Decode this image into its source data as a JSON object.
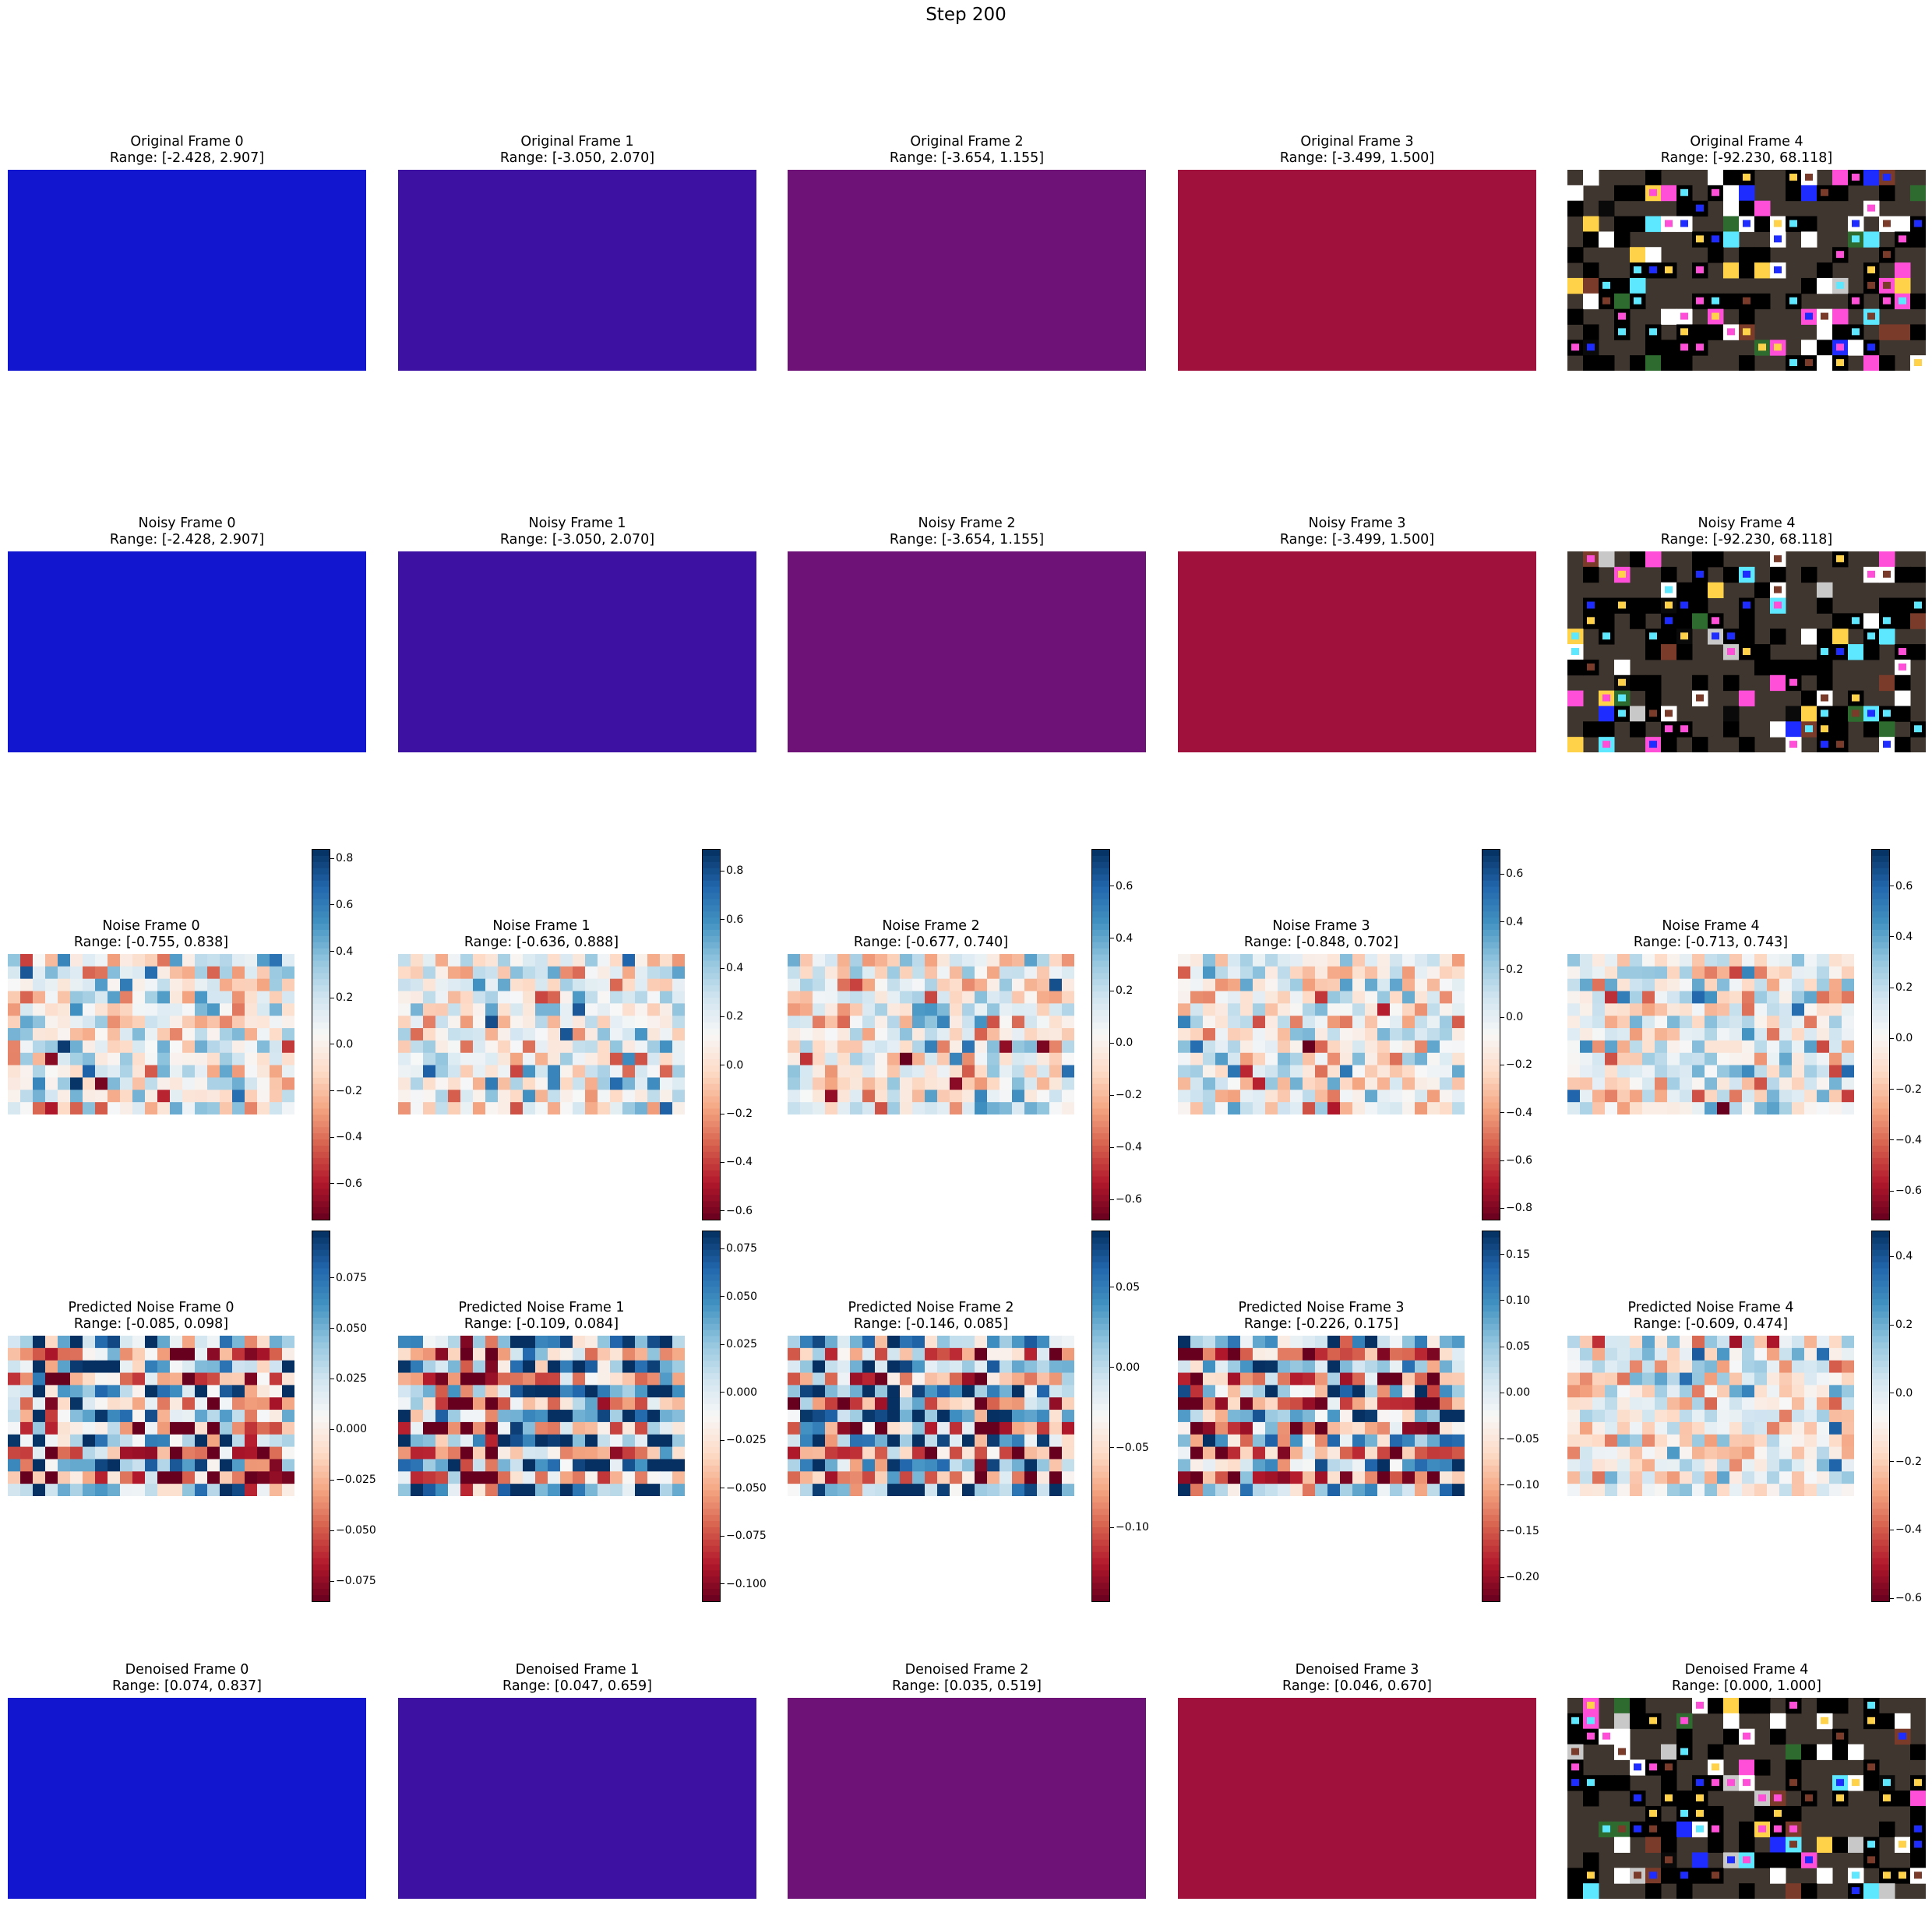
{
  "suptitle": "Step 200",
  "colors": {
    "frame0": "#1216cf",
    "frame1": "#3d12a3",
    "frame2": "#6e1277",
    "frame3": "#a0113c",
    "frame4_base": "#403630",
    "colormap": "RdBu"
  },
  "chart_data": {
    "type": "heatmap",
    "rows": [
      {
        "kind": "rgb-image",
        "panels": [
          {
            "title": "Original Frame 0",
            "range_label": "Range: [-2.428, 2.907]"
          },
          {
            "title": "Original Frame 1",
            "range_label": "Range: [-3.050, 2.070]"
          },
          {
            "title": "Original Frame 2",
            "range_label": "Range: [-3.654, 1.155]"
          },
          {
            "title": "Original Frame 3",
            "range_label": "Range: [-3.499, 1.500]"
          },
          {
            "title": "Original Frame 4",
            "range_label": "Range: [-92.230, 68.118]"
          }
        ]
      },
      {
        "kind": "rgb-image",
        "panels": [
          {
            "title": "Noisy Frame 0",
            "range_label": "Range: [-2.428, 2.907]"
          },
          {
            "title": "Noisy Frame 1",
            "range_label": "Range: [-3.050, 2.070]"
          },
          {
            "title": "Noisy Frame 2",
            "range_label": "Range: [-3.654, 1.155]"
          },
          {
            "title": "Noisy Frame 3",
            "range_label": "Range: [-3.499, 1.500]"
          },
          {
            "title": "Noisy Frame 4",
            "range_label": "Range: [-92.230, 68.118]"
          }
        ]
      },
      {
        "kind": "heatmap",
        "pattern": "random",
        "panels": [
          {
            "title": "Noise Frame 0",
            "range_label": "Range: [-0.755, 0.838]",
            "vmin": -0.755,
            "vmax": 0.838,
            "ticks": [
              -0.6,
              -0.4,
              -0.2,
              0.0,
              0.2,
              0.4,
              0.6,
              0.8
            ],
            "tick_labels": [
              "−0.6",
              "−0.4",
              "−0.2",
              "0.0",
              "0.2",
              "0.4",
              "0.6",
              "0.8"
            ]
          },
          {
            "title": "Noise Frame 1",
            "range_label": "Range: [-0.636, 0.888]",
            "vmin": -0.636,
            "vmax": 0.888,
            "ticks": [
              -0.6,
              -0.4,
              -0.2,
              0.0,
              0.2,
              0.4,
              0.6,
              0.8
            ],
            "tick_labels": [
              "−0.6",
              "−0.4",
              "−0.2",
              "0.0",
              "0.2",
              "0.4",
              "0.6",
              "0.8"
            ]
          },
          {
            "title": "Noise Frame 2",
            "range_label": "Range: [-0.677, 0.740]",
            "vmin": -0.677,
            "vmax": 0.74,
            "ticks": [
              -0.6,
              -0.4,
              -0.2,
              0.0,
              0.2,
              0.4,
              0.6
            ],
            "tick_labels": [
              "−0.6",
              "−0.4",
              "−0.2",
              "0.0",
              "0.2",
              "0.4",
              "0.6"
            ]
          },
          {
            "title": "Noise Frame 3",
            "range_label": "Range: [-0.848, 0.702]",
            "vmin": -0.848,
            "vmax": 0.702,
            "ticks": [
              -0.8,
              -0.6,
              -0.4,
              -0.2,
              0.0,
              0.2,
              0.4,
              0.6
            ],
            "tick_labels": [
              "−0.8",
              "−0.6",
              "−0.4",
              "−0.2",
              "0.0",
              "0.2",
              "0.4",
              "0.6"
            ]
          },
          {
            "title": "Noise Frame 4",
            "range_label": "Range: [-0.713, 0.743]",
            "vmin": -0.713,
            "vmax": 0.743,
            "ticks": [
              -0.6,
              -0.4,
              -0.2,
              0.0,
              0.2,
              0.4,
              0.6
            ],
            "tick_labels": [
              "−0.6",
              "−0.4",
              "−0.2",
              "0.0",
              "0.2",
              "0.4",
              "0.6"
            ]
          }
        ]
      },
      {
        "kind": "heatmap",
        "pattern": "striped",
        "panels": [
          {
            "title": "Predicted Noise Frame 0",
            "range_label": "Range: [-0.085, 0.098]",
            "vmin": -0.085,
            "vmax": 0.098,
            "ticks": [
              -0.075,
              -0.05,
              -0.025,
              0.0,
              0.025,
              0.05,
              0.075
            ],
            "tick_labels": [
              "−0.075",
              "−0.050",
              "−0.025",
              "0.000",
              "0.025",
              "0.050",
              "0.075"
            ]
          },
          {
            "title": "Predicted Noise Frame 1",
            "range_label": "Range: [-0.109, 0.084]",
            "vmin": -0.109,
            "vmax": 0.084,
            "ticks": [
              -0.1,
              -0.075,
              -0.05,
              -0.025,
              0.0,
              0.025,
              0.05,
              0.075
            ],
            "tick_labels": [
              "−0.100",
              "−0.075",
              "−0.050",
              "−0.025",
              "0.000",
              "0.025",
              "0.050",
              "0.075"
            ]
          },
          {
            "title": "Predicted Noise Frame 2",
            "range_label": "Range: [-0.146, 0.085]",
            "vmin": -0.146,
            "vmax": 0.085,
            "ticks": [
              -0.1,
              -0.05,
              0.0,
              0.05
            ],
            "tick_labels": [
              "−0.10",
              "−0.05",
              "0.00",
              "0.05"
            ]
          },
          {
            "title": "Predicted Noise Frame 3",
            "range_label": "Range: [-0.226, 0.175]",
            "vmin": -0.226,
            "vmax": 0.175,
            "ticks": [
              -0.2,
              -0.15,
              -0.1,
              -0.05,
              0.0,
              0.05,
              0.1,
              0.15
            ],
            "tick_labels": [
              "−0.20",
              "−0.15",
              "−0.10",
              "−0.05",
              "0.00",
              "0.05",
              "0.10",
              "0.15"
            ]
          },
          {
            "title": "Predicted Noise Frame 4",
            "range_label": "Range: [-0.609, 0.474]",
            "vmin": -0.609,
            "vmax": 0.474,
            "pattern": "random",
            "ticks": [
              -0.6,
              -0.4,
              -0.2,
              0.0,
              0.2,
              0.4
            ],
            "tick_labels": [
              "−0.6",
              "−0.4",
              "−0.2",
              "0.0",
              "0.2",
              "0.4"
            ]
          }
        ]
      },
      {
        "kind": "rgb-image",
        "panels": [
          {
            "title": "Denoised Frame 0",
            "range_label": "Range: [0.074, 0.837]"
          },
          {
            "title": "Denoised Frame 1",
            "range_label": "Range: [0.047, 0.659]"
          },
          {
            "title": "Denoised Frame 2",
            "range_label": "Range: [0.035, 0.519]"
          },
          {
            "title": "Denoised Frame 3",
            "range_label": "Range: [0.046, 0.670]"
          },
          {
            "title": "Denoised Frame 4",
            "range_label": "Range: [0.000, 1.000]"
          }
        ]
      }
    ]
  }
}
